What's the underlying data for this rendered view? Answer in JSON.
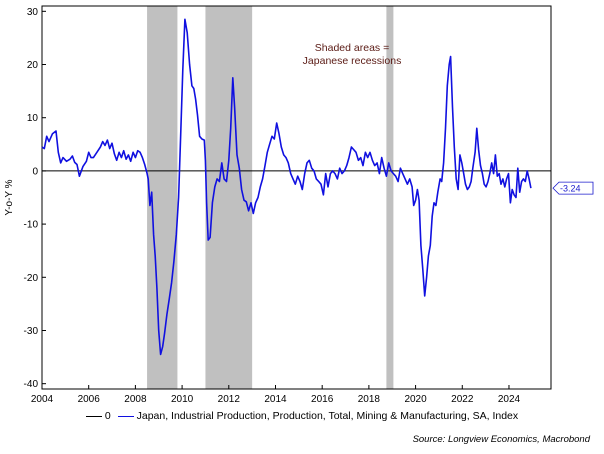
{
  "chart_data": {
    "type": "line",
    "ylabel": "Y-o-Y %",
    "ylim": [
      -41,
      31
    ],
    "xlim": [
      2004.0,
      2025.8
    ],
    "yticks": [
      "30",
      "20",
      "10",
      "0",
      "-10",
      "-20",
      "-30",
      "-40"
    ],
    "xticks": [
      "2004",
      "2006",
      "2008",
      "2010",
      "2012",
      "2014",
      "2016",
      "2018",
      "2020",
      "2022",
      "2024"
    ],
    "annotation_line1": "Shaded areas =",
    "annotation_line2": "Japanese recessions",
    "recessions": [
      [
        2008.5,
        2009.8
      ],
      [
        2011.0,
        2013.0
      ],
      [
        2018.75,
        2019.05
      ]
    ],
    "last_value_label": "-3.24",
    "zero_line_value": 0,
    "series": [
      {
        "name": "Japan, Industrial Production, Production, Total, Mining & Manufacturing, SA, Index",
        "color": "#1010e0",
        "points": [
          [
            2004.0,
            4.5
          ],
          [
            2004.1,
            4.2
          ],
          [
            2004.2,
            6.5
          ],
          [
            2004.3,
            5.5
          ],
          [
            2004.45,
            7
          ],
          [
            2004.6,
            7.5
          ],
          [
            2004.7,
            3.5
          ],
          [
            2004.8,
            1.5
          ],
          [
            2004.9,
            2.5
          ],
          [
            2005.05,
            1.8
          ],
          [
            2005.2,
            2.2
          ],
          [
            2005.3,
            2.8
          ],
          [
            2005.4,
            1.6
          ],
          [
            2005.5,
            1.2
          ],
          [
            2005.6,
            -1
          ],
          [
            2005.75,
            0.8
          ],
          [
            2005.9,
            1.8
          ],
          [
            2006.0,
            3.5
          ],
          [
            2006.1,
            2.5
          ],
          [
            2006.2,
            2.5
          ],
          [
            2006.35,
            3.5
          ],
          [
            2006.5,
            4.5
          ],
          [
            2006.6,
            5.5
          ],
          [
            2006.7,
            4.8
          ],
          [
            2006.8,
            5.8
          ],
          [
            2006.9,
            4.2
          ],
          [
            2007.0,
            5.2
          ],
          [
            2007.1,
            3.2
          ],
          [
            2007.2,
            2.0
          ],
          [
            2007.3,
            3.5
          ],
          [
            2007.4,
            2.5
          ],
          [
            2007.5,
            3.8
          ],
          [
            2007.6,
            2.2
          ],
          [
            2007.7,
            3.0
          ],
          [
            2007.8,
            1.8
          ],
          [
            2007.9,
            3.5
          ],
          [
            2008.0,
            2.5
          ],
          [
            2008.1,
            3.8
          ],
          [
            2008.2,
            3.5
          ],
          [
            2008.3,
            2.5
          ],
          [
            2008.4,
            1.2
          ],
          [
            2008.5,
            -0.5
          ],
          [
            2008.55,
            -1.5
          ],
          [
            2008.62,
            -6.5
          ],
          [
            2008.7,
            -4
          ],
          [
            2008.78,
            -12
          ],
          [
            2008.85,
            -16
          ],
          [
            2008.92,
            -22
          ],
          [
            2009.0,
            -30
          ],
          [
            2009.08,
            -34.5
          ],
          [
            2009.17,
            -33
          ],
          [
            2009.25,
            -30.5
          ],
          [
            2009.35,
            -27
          ],
          [
            2009.45,
            -24
          ],
          [
            2009.55,
            -21
          ],
          [
            2009.65,
            -17
          ],
          [
            2009.75,
            -12
          ],
          [
            2009.85,
            -5
          ],
          [
            2009.95,
            8
          ],
          [
            2010.03,
            19
          ],
          [
            2010.12,
            28.5
          ],
          [
            2010.22,
            26
          ],
          [
            2010.32,
            20
          ],
          [
            2010.42,
            16
          ],
          [
            2010.5,
            15.5
          ],
          [
            2010.58,
            13.5
          ],
          [
            2010.66,
            10.5
          ],
          [
            2010.75,
            6.5
          ],
          [
            2010.85,
            6.0
          ],
          [
            2010.95,
            5.8
          ],
          [
            2011.0,
            2
          ],
          [
            2011.05,
            -6
          ],
          [
            2011.12,
            -13
          ],
          [
            2011.2,
            -12.5
          ],
          [
            2011.3,
            -6
          ],
          [
            2011.4,
            -3
          ],
          [
            2011.5,
            -1.5
          ],
          [
            2011.6,
            -2
          ],
          [
            2011.7,
            1.5
          ],
          [
            2011.8,
            -1.5
          ],
          [
            2011.9,
            -2
          ],
          [
            2012.0,
            2
          ],
          [
            2012.08,
            8
          ],
          [
            2012.17,
            17.5
          ],
          [
            2012.25,
            12
          ],
          [
            2012.35,
            3
          ],
          [
            2012.45,
            0.5
          ],
          [
            2012.55,
            -3.5
          ],
          [
            2012.65,
            -5.5
          ],
          [
            2012.75,
            -5.8
          ],
          [
            2012.85,
            -7.5
          ],
          [
            2012.95,
            -6
          ],
          [
            2013.05,
            -8
          ],
          [
            2013.15,
            -6
          ],
          [
            2013.25,
            -5
          ],
          [
            2013.35,
            -3
          ],
          [
            2013.45,
            -1.5
          ],
          [
            2013.55,
            1.0
          ],
          [
            2013.65,
            3.5
          ],
          [
            2013.75,
            5.0
          ],
          [
            2013.85,
            6.5
          ],
          [
            2013.95,
            6.0
          ],
          [
            2014.05,
            9.0
          ],
          [
            2014.15,
            7.0
          ],
          [
            2014.25,
            4.5
          ],
          [
            2014.35,
            3.0
          ],
          [
            2014.45,
            2.5
          ],
          [
            2014.55,
            1.5
          ],
          [
            2014.65,
            -0.5
          ],
          [
            2014.75,
            -1.5
          ],
          [
            2014.85,
            -2.5
          ],
          [
            2014.95,
            -1.0
          ],
          [
            2015.05,
            -2.0
          ],
          [
            2015.15,
            -3.5
          ],
          [
            2015.25,
            -0.5
          ],
          [
            2015.35,
            1.5
          ],
          [
            2015.45,
            2.0
          ],
          [
            2015.55,
            0.5
          ],
          [
            2015.65,
            0.0
          ],
          [
            2015.75,
            -1.5
          ],
          [
            2015.85,
            -2.0
          ],
          [
            2015.95,
            -2.5
          ],
          [
            2016.05,
            -4.5
          ],
          [
            2016.15,
            -0.5
          ],
          [
            2016.25,
            -3.0
          ],
          [
            2016.35,
            -0.5
          ],
          [
            2016.45,
            0.0
          ],
          [
            2016.55,
            -0.5
          ],
          [
            2016.65,
            -1.5
          ],
          [
            2016.75,
            0.5
          ],
          [
            2016.85,
            -0.5
          ],
          [
            2016.95,
            0.0
          ],
          [
            2017.05,
            1.0
          ],
          [
            2017.15,
            2.5
          ],
          [
            2017.25,
            4.5
          ],
          [
            2017.35,
            4.0
          ],
          [
            2017.45,
            3.5
          ],
          [
            2017.55,
            2.0
          ],
          [
            2017.65,
            2.5
          ],
          [
            2017.75,
            1.0
          ],
          [
            2017.85,
            3.5
          ],
          [
            2017.95,
            2.5
          ],
          [
            2018.05,
            3.5
          ],
          [
            2018.15,
            2.0
          ],
          [
            2018.25,
            1.0
          ],
          [
            2018.35,
            1.5
          ],
          [
            2018.45,
            -0.5
          ],
          [
            2018.55,
            2.5
          ],
          [
            2018.65,
            0.5
          ],
          [
            2018.75,
            -1.0
          ],
          [
            2018.85,
            1.5
          ],
          [
            2018.95,
            0.0
          ],
          [
            2019.05,
            -0.5
          ],
          [
            2019.15,
            -1.0
          ],
          [
            2019.25,
            -2.0
          ],
          [
            2019.35,
            0.5
          ],
          [
            2019.45,
            -0.5
          ],
          [
            2019.55,
            -1.5
          ],
          [
            2019.65,
            -2.5
          ],
          [
            2019.75,
            -1.5
          ],
          [
            2019.85,
            -3.0
          ],
          [
            2019.92,
            -6.5
          ],
          [
            2020.0,
            -5.5
          ],
          [
            2020.08,
            -3.5
          ],
          [
            2020.15,
            -5.5
          ],
          [
            2020.23,
            -14
          ],
          [
            2020.31,
            -18.5
          ],
          [
            2020.39,
            -23.5
          ],
          [
            2020.47,
            -20
          ],
          [
            2020.55,
            -16
          ],
          [
            2020.63,
            -14
          ],
          [
            2020.71,
            -8.5
          ],
          [
            2020.79,
            -6
          ],
          [
            2020.87,
            -6.5
          ],
          [
            2020.95,
            -4
          ],
          [
            2021.05,
            -1.5
          ],
          [
            2021.12,
            -2
          ],
          [
            2021.2,
            1.5
          ],
          [
            2021.28,
            8
          ],
          [
            2021.36,
            16
          ],
          [
            2021.44,
            20
          ],
          [
            2021.5,
            21.5
          ],
          [
            2021.58,
            12
          ],
          [
            2021.66,
            4.5
          ],
          [
            2021.74,
            -1.5
          ],
          [
            2021.82,
            -3.5
          ],
          [
            2021.9,
            3
          ],
          [
            2021.98,
            1.5
          ],
          [
            2022.06,
            -0.5
          ],
          [
            2022.14,
            -2.5
          ],
          [
            2022.22,
            -3.5
          ],
          [
            2022.3,
            -3
          ],
          [
            2022.38,
            -2
          ],
          [
            2022.45,
            0.5
          ],
          [
            2022.55,
            3.5
          ],
          [
            2022.62,
            8
          ],
          [
            2022.7,
            4
          ],
          [
            2022.78,
            1.0
          ],
          [
            2022.86,
            -0.5
          ],
          [
            2022.94,
            -2.5
          ],
          [
            2023.02,
            -3.0
          ],
          [
            2023.1,
            -2.0
          ],
          [
            2023.18,
            -0.5
          ],
          [
            2023.26,
            1.5
          ],
          [
            2023.34,
            -0.5
          ],
          [
            2023.42,
            3.0
          ],
          [
            2023.5,
            -1.0
          ],
          [
            2023.58,
            -0.5
          ],
          [
            2023.66,
            -2.5
          ],
          [
            2023.74,
            -1.5
          ],
          [
            2023.82,
            -3.0
          ],
          [
            2023.9,
            -1.5
          ],
          [
            2023.98,
            -0.5
          ],
          [
            2024.06,
            -6.0
          ],
          [
            2024.14,
            -3.5
          ],
          [
            2024.22,
            -4.5
          ],
          [
            2024.3,
            -5.0
          ],
          [
            2024.38,
            0.5
          ],
          [
            2024.46,
            -4.0
          ],
          [
            2024.54,
            -2.0
          ],
          [
            2024.62,
            -1.5
          ],
          [
            2024.7,
            -2.0
          ],
          [
            2024.78,
            0.0
          ],
          [
            2024.86,
            -1.5
          ],
          [
            2024.94,
            -3.24
          ]
        ]
      }
    ],
    "legend": {
      "items": [
        {
          "label": "0",
          "color": "#000000"
        },
        {
          "label": "Japan, Industrial Production, Production, Total, Mining & Manufacturing, SA, Index",
          "color": "#1010e0"
        }
      ]
    },
    "source": "Source: Longview Economics, Macrobond"
  }
}
